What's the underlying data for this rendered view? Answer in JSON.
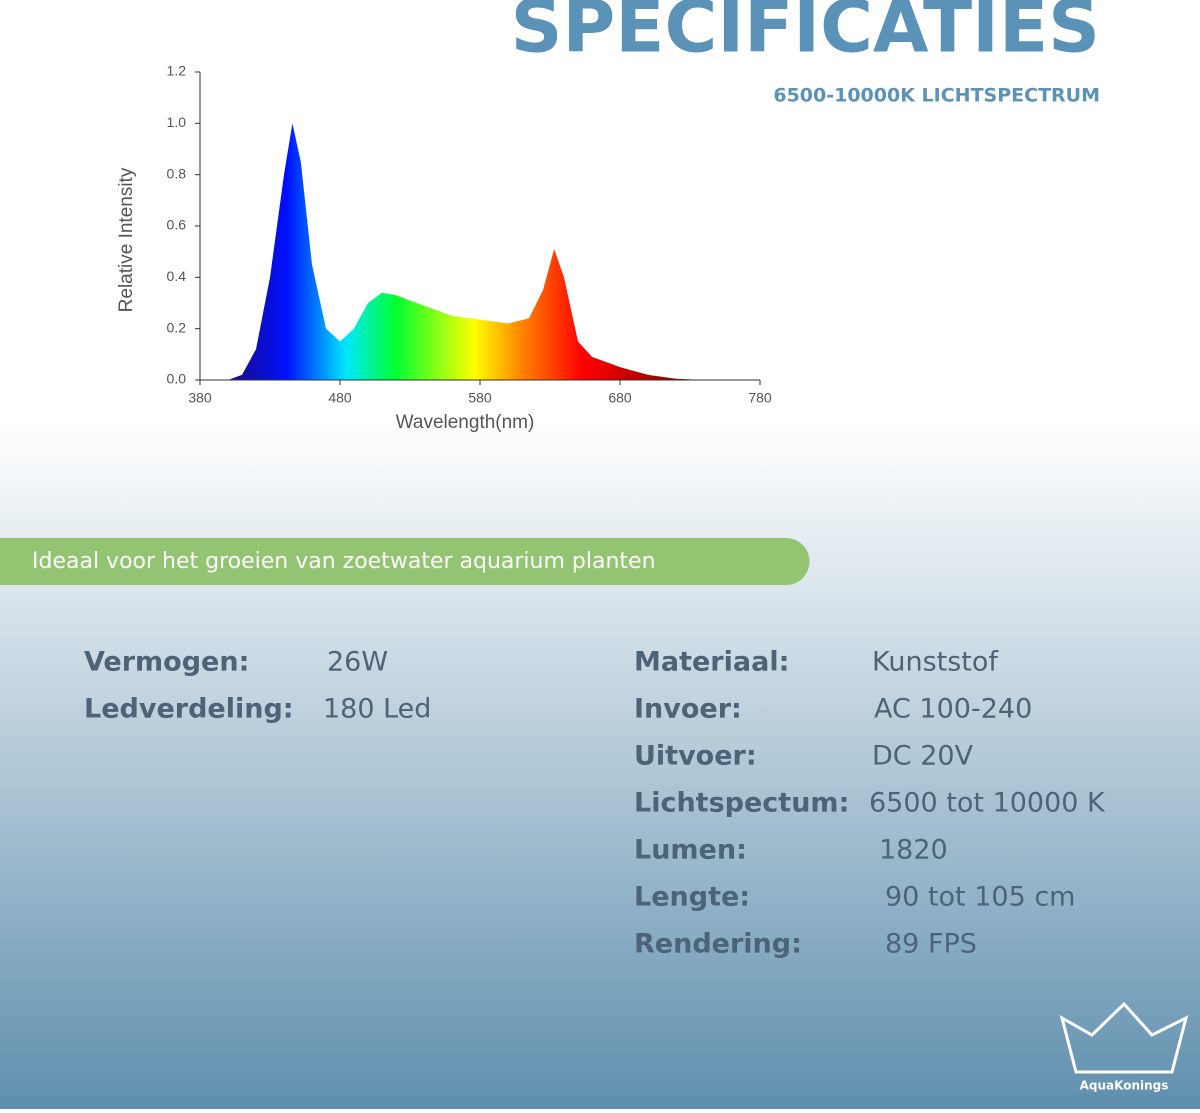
{
  "header": {
    "title": "SPECIFICATIES",
    "subtitle": "6500-10000K LICHTSPECTRUM"
  },
  "chart_data": {
    "type": "area",
    "x": [
      400,
      410,
      420,
      430,
      440,
      446,
      452,
      460,
      470,
      480,
      490,
      500,
      510,
      520,
      540,
      560,
      580,
      600,
      615,
      625,
      633,
      640,
      650,
      660,
      680,
      700,
      720,
      740
    ],
    "values": [
      0,
      0.02,
      0.12,
      0.4,
      0.8,
      1.0,
      0.85,
      0.45,
      0.2,
      0.15,
      0.2,
      0.3,
      0.34,
      0.33,
      0.29,
      0.25,
      0.235,
      0.22,
      0.24,
      0.35,
      0.51,
      0.4,
      0.15,
      0.09,
      0.05,
      0.02,
      0.005,
      0
    ],
    "x_label": "Wavelength(nm)",
    "y_label": "Relative Intensity",
    "xlim": [
      380,
      780
    ],
    "xticks": [
      380,
      480,
      580,
      680,
      780
    ],
    "ylim": [
      0,
      1.2
    ],
    "yticks": [
      {
        "value": 0,
        "label": "0.0"
      },
      0.2,
      0.4,
      0.6,
      0.8,
      {
        "value": 1,
        "label": "1.0"
      },
      1.2
    ]
  },
  "banner": {
    "text": "Ideaal voor het groeien van zoetwater aquarium planten"
  },
  "specs": {
    "left": [
      [
        "Vermogen:",
        "26W"
      ],
      [
        "Ledverdeling:",
        "180 Led"
      ]
    ],
    "right": [
      [
        "Materiaal:",
        "Kunststof"
      ],
      [
        "Invoer:",
        "AC 100-240"
      ],
      [
        "Uitvoer:",
        "DC 20V"
      ],
      [
        "Lichtspectum:",
        "6500 tot 10000 K"
      ],
      [
        "Lumen:",
        "1820"
      ],
      [
        "Lengte:",
        "90 tot 105 cm"
      ],
      [
        "Rendering:",
        "89 FPS"
      ]
    ]
  },
  "logo": {
    "text": "AquaKonings"
  }
}
